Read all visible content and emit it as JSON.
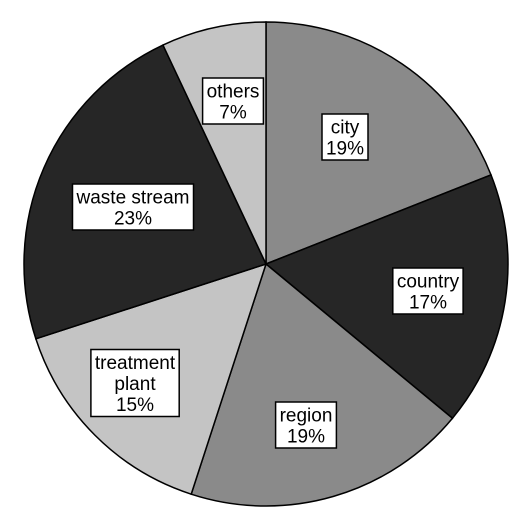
{
  "chart_data": {
    "type": "pie",
    "title": "",
    "start_angle_deg": 0,
    "direction": "clockwise",
    "slices": [
      {
        "label_lines": [
          "city"
        ],
        "value_text": "19%",
        "value": 19,
        "color": "#8a8a8a"
      },
      {
        "label_lines": [
          "country"
        ],
        "value_text": "17%",
        "value": 17,
        "color": "#262626"
      },
      {
        "label_lines": [
          "region"
        ],
        "value_text": "19%",
        "value": 19,
        "color": "#8a8a8a"
      },
      {
        "label_lines": [
          "treatment",
          "plant"
        ],
        "value_text": "15%",
        "value": 15,
        "color": "#c4c4c4"
      },
      {
        "label_lines": [
          "waste stream"
        ],
        "value_text": "23%",
        "value": 23,
        "color": "#262626"
      },
      {
        "label_lines": [
          "others"
        ],
        "value_text": "7%",
        "value": 7,
        "color": "#c4c4c4"
      }
    ]
  }
}
